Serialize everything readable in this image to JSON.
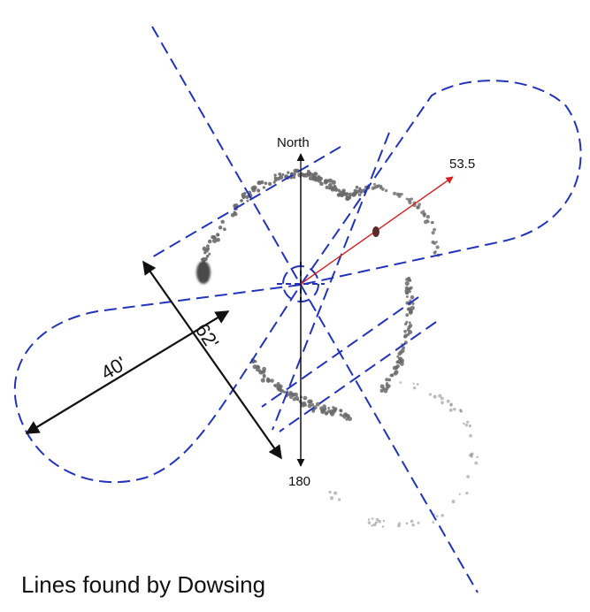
{
  "compass": {
    "north": "North",
    "south": "180"
  },
  "bearing": {
    "label": "53.5"
  },
  "dimensions": {
    "width_label": "40'",
    "length_label": "62'"
  },
  "caption": "Lines found by Dowsing",
  "colors": {
    "dowsing_lines": "#2233bb",
    "bearing_arrow": "#d62020",
    "stones": "#6a6a6a",
    "dimension_arrows": "#111111"
  }
}
